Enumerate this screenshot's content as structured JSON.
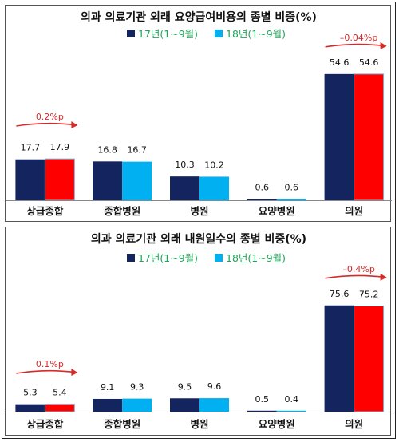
{
  "chart_data": [
    {
      "type": "bar",
      "title": "의과 의료기관 외래 요양급여비용의 종별 비중(%)",
      "categories": [
        "상급종합",
        "종합병원",
        "병원",
        "요양병원",
        "의원"
      ],
      "series": [
        {
          "name": "17년(1~9월)",
          "values": [
            17.7,
            16.8,
            10.3,
            0.6,
            54.6
          ],
          "color": "#14245e"
        },
        {
          "name": "18년(1~9월)",
          "values": [
            17.9,
            16.7,
            10.2,
            0.6,
            54.6
          ],
          "color": "#00b0f0"
        }
      ],
      "value_labels": [
        [
          "17.7",
          "16.8",
          "10.3",
          "0.6",
          "54.6"
        ],
        [
          "17.9",
          "16.7",
          "10.2",
          "0.6",
          "54.6"
        ]
      ],
      "highlight_color": "#ff0000",
      "annotations": [
        {
          "category": "상급종합",
          "text": "0.2%p"
        },
        {
          "category": "의원",
          "text": "–0.04%p"
        }
      ],
      "ylim": [
        0,
        58
      ],
      "legend": "top"
    },
    {
      "type": "bar",
      "title": "의과 의료기관 외래 내원일수의 종별 비중(%)",
      "categories": [
        "상급종합",
        "종합병원",
        "병원",
        "요양병원",
        "의원"
      ],
      "series": [
        {
          "name": "17년(1~9월)",
          "values": [
            5.3,
            9.1,
            9.5,
            0.5,
            75.6
          ],
          "color": "#14245e"
        },
        {
          "name": "18년(1~9월)",
          "values": [
            5.4,
            9.3,
            9.6,
            0.4,
            75.2
          ],
          "color": "#00b0f0"
        }
      ],
      "value_labels": [
        [
          "5.3",
          "9.1",
          "9.5",
          "0.5",
          "75.6"
        ],
        [
          "5.4",
          "9.3",
          "9.6",
          "0.4",
          "75.2"
        ]
      ],
      "highlight_color": "#ff0000",
      "annotations": [
        {
          "category": "상급종합",
          "text": "0.1%p"
        },
        {
          "category": "의원",
          "text": "–0.4%p"
        }
      ],
      "ylim": [
        0,
        80
      ],
      "legend": "top"
    }
  ]
}
